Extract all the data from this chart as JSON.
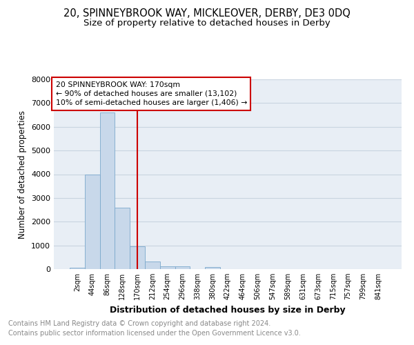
{
  "title": "20, SPINNEYBROOK WAY, MICKLEOVER, DERBY, DE3 0DQ",
  "subtitle": "Size of property relative to detached houses in Derby",
  "xlabel": "Distribution of detached houses by size in Derby",
  "ylabel": "Number of detached properties",
  "footer_line1": "Contains HM Land Registry data © Crown copyright and database right 2024.",
  "footer_line2": "Contains public sector information licensed under the Open Government Licence v3.0.",
  "bin_labels": [
    "2sqm",
    "44sqm",
    "86sqm",
    "128sqm",
    "170sqm",
    "212sqm",
    "254sqm",
    "296sqm",
    "338sqm",
    "380sqm",
    "422sqm",
    "464sqm",
    "506sqm",
    "547sqm",
    "589sqm",
    "631sqm",
    "673sqm",
    "715sqm",
    "757sqm",
    "799sqm",
    "841sqm"
  ],
  "bar_values": [
    60,
    4000,
    6600,
    2600,
    950,
    330,
    120,
    110,
    0,
    100,
    0,
    0,
    0,
    0,
    0,
    0,
    0,
    0,
    0,
    0,
    0
  ],
  "bar_color": "#c8d8ea",
  "bar_edgecolor": "#7aa8cc",
  "vline_x": 4,
  "vline_color": "#cc0000",
  "ylim": [
    0,
    8000
  ],
  "yticks": [
    0,
    1000,
    2000,
    3000,
    4000,
    5000,
    6000,
    7000,
    8000
  ],
  "annotation_line1": "20 SPINNEYBROOK WAY: 170sqm",
  "annotation_line2": "← 90% of detached houses are smaller (13,102)",
  "annotation_line3": "10% of semi-detached houses are larger (1,406) →",
  "annotation_box_color": "#ffffff",
  "annotation_box_edgecolor": "#cc0000",
  "grid_color": "#c8d4e0",
  "bg_color": "#e8eef5",
  "title_fontsize": 10.5,
  "subtitle_fontsize": 9.5,
  "footer_fontsize": 7,
  "footer_color": "#888888"
}
